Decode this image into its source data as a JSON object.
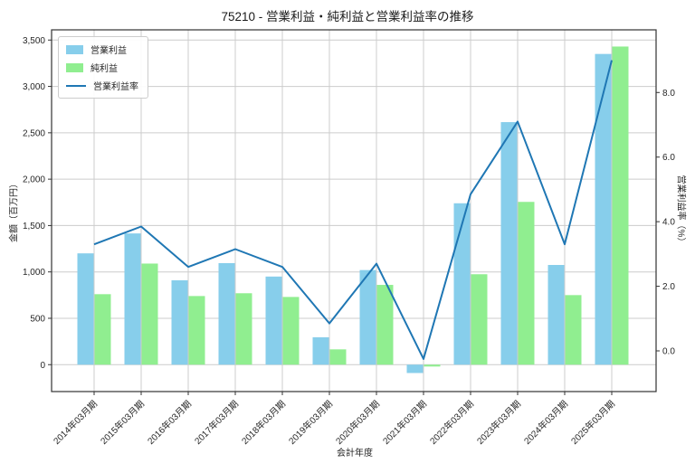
{
  "title": "75210 - 営業利益・純利益と営業利益率の推移",
  "chart_data": {
    "type": "bar+line combo",
    "categories": [
      "2014年03月期",
      "2015年03月期",
      "2016年03月期",
      "2017年03月期",
      "2018年03月期",
      "2019年03月期",
      "2020年03月期",
      "2021年03月期",
      "2022年03月期",
      "2023年03月期",
      "2024年03月期",
      "2025年03月期"
    ],
    "series": [
      {
        "name": "営業利益",
        "type": "bar",
        "axis": "left",
        "color": "#87CEEB",
        "values": [
          1200,
          1415,
          910,
          1095,
          950,
          295,
          1020,
          -90,
          1740,
          2615,
          1075,
          3350
        ]
      },
      {
        "name": "純利益",
        "type": "bar",
        "axis": "left",
        "color": "#90EE90",
        "values": [
          760,
          1090,
          740,
          770,
          730,
          165,
          860,
          -20,
          975,
          1755,
          750,
          3430
        ]
      },
      {
        "name": "営業利益率",
        "type": "line",
        "axis": "right",
        "color": "#1f77b4",
        "values": [
          3.3,
          3.85,
          2.6,
          3.15,
          2.6,
          0.85,
          2.7,
          -0.25,
          4.85,
          7.1,
          3.3,
          9.0
        ]
      }
    ],
    "xlabel": "会計年度",
    "ylabel_left": "金額（百万円）",
    "ylabel_right": "営業利益率（%）",
    "ylim_left": [
      -290,
      3610
    ],
    "ylim_right": [
      -1.26,
      9.94
    ],
    "yticks_left": {
      "values": [
        0,
        500,
        1000,
        1500,
        2000,
        2500,
        3000,
        3500
      ],
      "labels": [
        "0",
        "500",
        "1,000",
        "1,500",
        "2,000",
        "2,500",
        "3,000",
        "3,500"
      ]
    },
    "yticks_right": {
      "values": [
        0.0,
        2.0,
        4.0,
        6.0,
        8.0
      ],
      "labels": [
        "0.0",
        "2.0",
        "4.0",
        "6.0",
        "8.0"
      ]
    },
    "grid": true,
    "grid_color": "#cccccc",
    "spine_color": "#333333",
    "legend_position": "upper left"
  }
}
